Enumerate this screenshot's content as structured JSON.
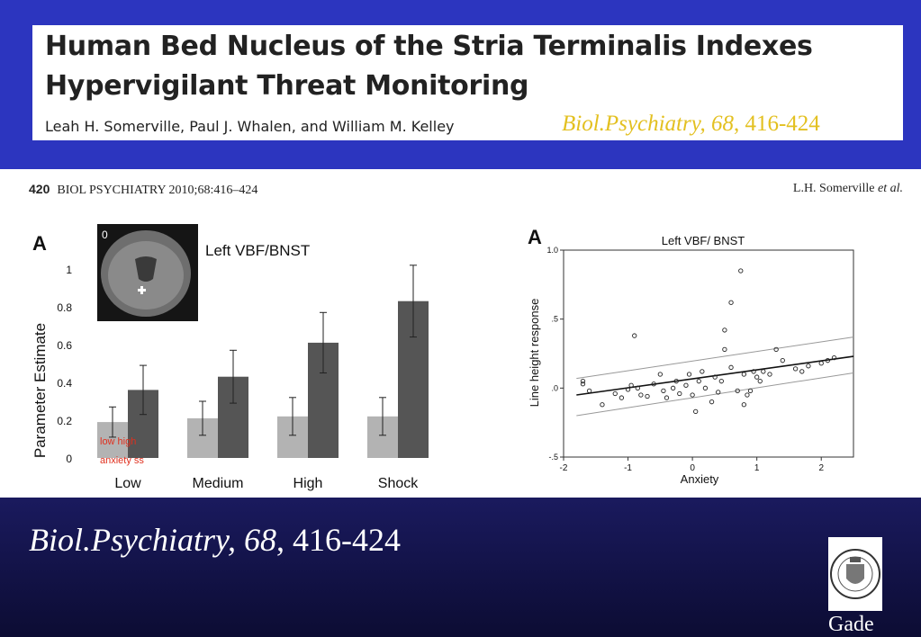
{
  "header": {
    "title_line1": "Human Bed Nucleus of the Stria Terminalis Indexes",
    "title_line2": "Hypervigilant Threat Monitoring",
    "authors": "Leah H. Somerville, Paul J. Whalen, and William M. Kelley",
    "citation_journal": "Biol.Psychiatry, 68",
    "citation_pages": ", 416-424",
    "colors": {
      "band": "#2c35bf",
      "citation": "#e3c020"
    }
  },
  "running_head": {
    "page": "420",
    "journal": "BIOL PSYCHIATRY 2010;68:416–424",
    "author": "L.H. Somerville",
    "author_suffix": "et al."
  },
  "brain_inset": {
    "slice_label": "0",
    "icon": "coronal-brain-mri"
  },
  "chart_data": [
    {
      "type": "bar",
      "panel_label": "A",
      "title": "Left VBF/BNST",
      "ylabel": "Parameter Estimate",
      "ylim": [
        0,
        1
      ],
      "yticks": [
        "0",
        "0.2",
        "0.4",
        "0.6",
        "0.8",
        "1"
      ],
      "categories": [
        "Low",
        "Medium",
        "High",
        "Shock"
      ],
      "series": [
        {
          "name": "low anxiety ss",
          "values": [
            0.19,
            0.21,
            0.22,
            0.22
          ],
          "errors": [
            0.08,
            0.09,
            0.1,
            0.1
          ],
          "color": "#b3b3b3"
        },
        {
          "name": "high",
          "values": [
            0.36,
            0.43,
            0.61,
            0.83
          ],
          "errors": [
            0.13,
            0.14,
            0.16,
            0.19
          ],
          "color": "#555555"
        }
      ],
      "legend_labels": {
        "line1": "low   high",
        "line2": "anxiety ss"
      },
      "legend_color": "#e0301e"
    },
    {
      "type": "scatter",
      "panel_label": "A",
      "title": "Left VBF/ BNST",
      "xlabel": "Anxiety",
      "ylabel": "Line height response",
      "xlim": [
        -2,
        2.5
      ],
      "ylim": [
        -0.5,
        1.0
      ],
      "xticks": [
        "-2",
        "-1",
        "0",
        "1",
        "2"
      ],
      "yticks": [
        "-.5",
        ".0",
        ".5",
        "1.0"
      ],
      "points": [
        [
          -1.7,
          0.03
        ],
        [
          -1.7,
          0.05
        ],
        [
          -1.6,
          -0.02
        ],
        [
          -1.4,
          -0.12
        ],
        [
          -1.2,
          -0.04
        ],
        [
          -1.1,
          -0.07
        ],
        [
          -1.0,
          -0.01
        ],
        [
          -0.95,
          0.02
        ],
        [
          -0.9,
          0.38
        ],
        [
          -0.85,
          0.0
        ],
        [
          -0.8,
          -0.05
        ],
        [
          -0.7,
          -0.06
        ],
        [
          -0.6,
          0.03
        ],
        [
          -0.5,
          0.1
        ],
        [
          -0.45,
          -0.02
        ],
        [
          -0.4,
          -0.07
        ],
        [
          -0.3,
          0.0
        ],
        [
          -0.25,
          0.05
        ],
        [
          -0.2,
          -0.04
        ],
        [
          -0.1,
          0.02
        ],
        [
          -0.05,
          0.1
        ],
        [
          0.0,
          -0.05
        ],
        [
          0.05,
          -0.17
        ],
        [
          0.1,
          0.05
        ],
        [
          0.15,
          0.12
        ],
        [
          0.2,
          0.0
        ],
        [
          0.3,
          -0.1
        ],
        [
          0.35,
          0.08
        ],
        [
          0.4,
          -0.03
        ],
        [
          0.45,
          0.05
        ],
        [
          0.5,
          0.42
        ],
        [
          0.5,
          0.28
        ],
        [
          0.6,
          0.62
        ],
        [
          0.6,
          0.15
        ],
        [
          0.7,
          -0.02
        ],
        [
          0.75,
          0.85
        ],
        [
          0.8,
          0.1
        ],
        [
          0.8,
          -0.12
        ],
        [
          0.85,
          -0.05
        ],
        [
          0.9,
          -0.02
        ],
        [
          0.95,
          0.12
        ],
        [
          1.0,
          0.08
        ],
        [
          1.05,
          0.05
        ],
        [
          1.1,
          0.12
        ],
        [
          1.2,
          0.1
        ],
        [
          1.3,
          0.28
        ],
        [
          1.4,
          0.2
        ],
        [
          1.6,
          0.14
        ],
        [
          1.7,
          0.12
        ],
        [
          1.8,
          0.16
        ],
        [
          2.0,
          0.18
        ],
        [
          2.1,
          0.2
        ],
        [
          2.2,
          0.22
        ]
      ],
      "regression": {
        "x": [
          -1.8,
          2.5
        ],
        "y": [
          -0.05,
          0.23
        ]
      },
      "confidence_band": {
        "upper": [
          0.07,
          0.37
        ],
        "lower": [
          -0.2,
          0.11
        ]
      }
    }
  ],
  "footer": {
    "citation_journal": "Biol.Psychiatry, 68",
    "citation_pages": ", 416-424",
    "seal_icon": "university-seal-icon",
    "name": "Gade"
  }
}
